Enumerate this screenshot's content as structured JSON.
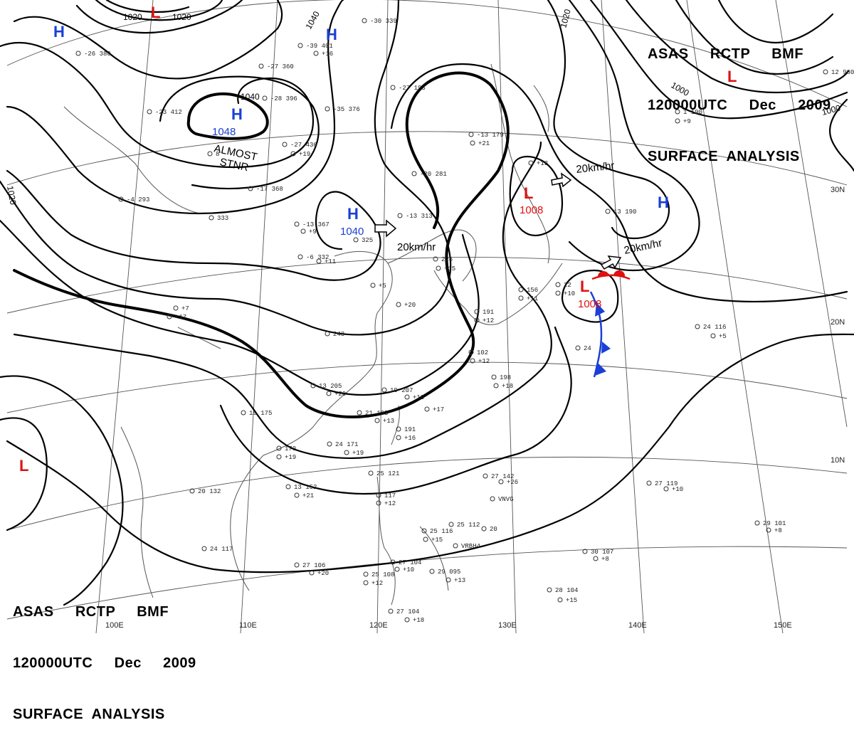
{
  "header": {
    "line1": "ASAS     RCTP     BMF",
    "line2": "120000UTC     Dec     2009",
    "line3": "SURFACE  ANALYSIS"
  },
  "colors": {
    "high": "#1a3fd6",
    "low": "#e01010",
    "isobar": "#000000",
    "grid": "#555555",
    "front_warm": "#e01010",
    "front_cold": "#1a3fd6"
  },
  "longitude_labels": [
    "110E",
    "120E",
    "130E",
    "140E",
    "150E",
    "100E"
  ],
  "latitude_labels": [
    "30N",
    "20N",
    "10N"
  ],
  "isobar_labels": [
    "1020",
    "1020",
    "1040",
    "1040",
    "1020",
    "1000",
    "1000",
    "1020"
  ],
  "pressure_centers": [
    {
      "type": "H",
      "value": "1048"
    },
    {
      "type": "H",
      "value": "1040"
    },
    {
      "type": "L",
      "value": "1008"
    },
    {
      "type": "L",
      "value": "1008"
    }
  ],
  "center_symbols": {
    "high": "H",
    "low": "L"
  },
  "annotations": {
    "almost_stnr_1": "ALMOST",
    "almost_stnr_2": "STNR",
    "motion_1": "20km/hr",
    "motion_2": "20km/hr",
    "motion_3": "20km/hr"
  },
  "station_plots": [
    "-26 380",
    "-27 360",
    "-28 396",
    "-23 412",
    "-35 376",
    "-27 193",
    "-27 436",
    "+19",
    "-17 368",
    "-13 367",
    "-6 332",
    "-20 281",
    "-13 313",
    "-13 179",
    "+21",
    "-30 339",
    "-39 401",
    "+16",
    "-4 293",
    "333",
    "226",
    "+15",
    "243",
    "13 205",
    "+20",
    "19 207",
    "+18",
    "21 193",
    "+13",
    "191",
    "+16",
    "24 171",
    "+19",
    "19 175",
    "170",
    "+19",
    "13 152",
    "+21",
    "20 132",
    "24 117",
    "27 106",
    "+20",
    "25 108",
    "+12",
    "27 104",
    "+18",
    "25 121",
    "117",
    "+12",
    "25 116",
    "+15",
    "27 104",
    "+10",
    "25 112",
    "20",
    "VRBH4",
    "29 095",
    "+13",
    "102",
    "+12",
    "198",
    "+18",
    "156",
    "+11",
    "191",
    "+12",
    "22",
    "+10",
    "24",
    "13 190",
    "1 190",
    "+9",
    "12 980",
    "24 116",
    "+5",
    "27 119",
    "+10",
    "29 101",
    "+8",
    "30 107",
    "+8",
    "28 104",
    "+15",
    "27 142",
    "+26",
    "VNVG",
    "+17",
    "325",
    "+9",
    "+11",
    "+7",
    "+17",
    "8",
    "+5",
    "+20",
    "+13",
    "12 +16"
  ]
}
